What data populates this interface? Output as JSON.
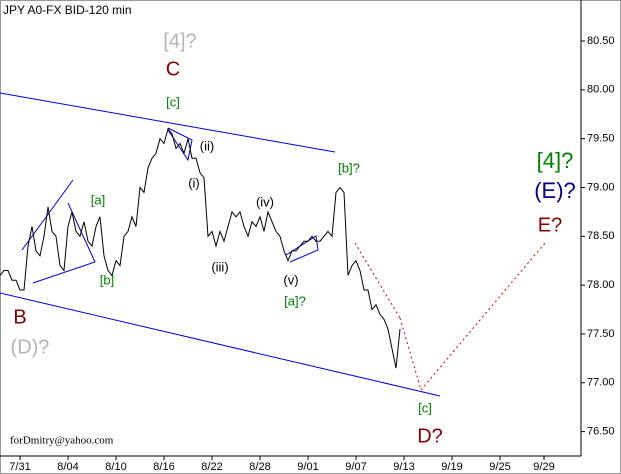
{
  "chart_data": {
    "type": "line",
    "title": "JPY A0-FX BID-120 min",
    "footer": "forDmitry@yahoo.com",
    "color": "#000000",
    "xlim": [
      0,
      145.25
    ],
    "ylim": [
      76.25,
      80.92
    ],
    "xticks": [
      {
        "value": 5,
        "label": "7/31"
      },
      {
        "value": 17,
        "label": "8/04"
      },
      {
        "value": 29,
        "label": "8/10"
      },
      {
        "value": 41,
        "label": "8/16"
      },
      {
        "value": 53,
        "label": "8/22"
      },
      {
        "value": 65,
        "label": "8/28"
      },
      {
        "value": 77,
        "label": "9/01"
      },
      {
        "value": 89,
        "label": "9/07"
      },
      {
        "value": 101,
        "label": "9/13"
      },
      {
        "value": 113,
        "label": "9/19"
      },
      {
        "value": 125,
        "label": "9/25"
      },
      {
        "value": 136,
        "label": "9/29"
      }
    ],
    "yticks": [
      {
        "value": 76.5,
        "label": "76.50"
      },
      {
        "value": 77,
        "label": "77.00"
      },
      {
        "value": 77.5,
        "label": "77.50"
      },
      {
        "value": 78,
        "label": "78.00"
      },
      {
        "value": 78.5,
        "label": "78.50"
      },
      {
        "value": 79,
        "label": "79.00"
      },
      {
        "value": 79.5,
        "label": "79.50"
      },
      {
        "value": 80,
        "label": "80.00"
      },
      {
        "value": 80.5,
        "label": "80.50"
      }
    ],
    "values": [
      78.1,
      78.15,
      78.15,
      78.05,
      78.05,
      77.95,
      77.95,
      78.4,
      78.6,
      78.35,
      78.3,
      78.5,
      78.8,
      78.55,
      78.5,
      78.2,
      78.15,
      78.6,
      78.75,
      78.55,
      78.5,
      78.65,
      78.45,
      78.4,
      78.6,
      78.7,
      78.3,
      78.15,
      78.1,
      78.25,
      78.2,
      78.5,
      78.55,
      78.7,
      78.6,
      79.0,
      78.95,
      79.2,
      79.3,
      79.35,
      79.5,
      79.45,
      79.6,
      79.55,
      79.4,
      79.45,
      79.35,
      79.5,
      79.3,
      79.3,
      79.15,
      79.1,
      78.5,
      78.55,
      78.4,
      78.55,
      78.45,
      78.6,
      78.75,
      78.7,
      78.75,
      78.6,
      78.5,
      78.65,
      78.6,
      78.7,
      78.55,
      78.75,
      78.65,
      78.55,
      78.5,
      78.35,
      78.25,
      78.35,
      78.35,
      78.4,
      78.45,
      78.45,
      78.5,
      78.45,
      78.45,
      78.5,
      78.55,
      78.5,
      78.95,
      79.0,
      78.95,
      78.1,
      78.2,
      78.25,
      78.15,
      77.95,
      77.95,
      77.75,
      77.8,
      77.7,
      77.65,
      77.55,
      77.35,
      77.15,
      77.55
    ],
    "annotations": [
      {
        "text": "[4]?",
        "color": "#b4b4b4"
      },
      {
        "text": "C",
        "color": "#800000"
      },
      {
        "text": "[c]",
        "color": "#008000"
      },
      {
        "text": "(ii)",
        "color": "#000000"
      },
      {
        "text": "(i)",
        "color": "#000000"
      },
      {
        "text": "[a]",
        "color": "#008000"
      },
      {
        "text": "[b]",
        "color": "#008000"
      },
      {
        "text": "(iii)",
        "color": "#000000"
      },
      {
        "text": "(iv)",
        "color": "#000000"
      },
      {
        "text": "(v)",
        "color": "#000000"
      },
      {
        "text": "[a]?",
        "color": "#008000"
      },
      {
        "text": "[b]?",
        "color": "#008000"
      },
      {
        "text": "[4]?",
        "color": "#008000"
      },
      {
        "text": "(E)?",
        "color": "#000080"
      },
      {
        "text": "E?",
        "color": "#800000"
      },
      {
        "text": "[c]",
        "color": "#008000"
      },
      {
        "text": "D?",
        "color": "#800000"
      },
      {
        "text": "B",
        "color": "#800000"
      },
      {
        "text": "(D)?",
        "color": "#b4b4b4"
      }
    ]
  }
}
